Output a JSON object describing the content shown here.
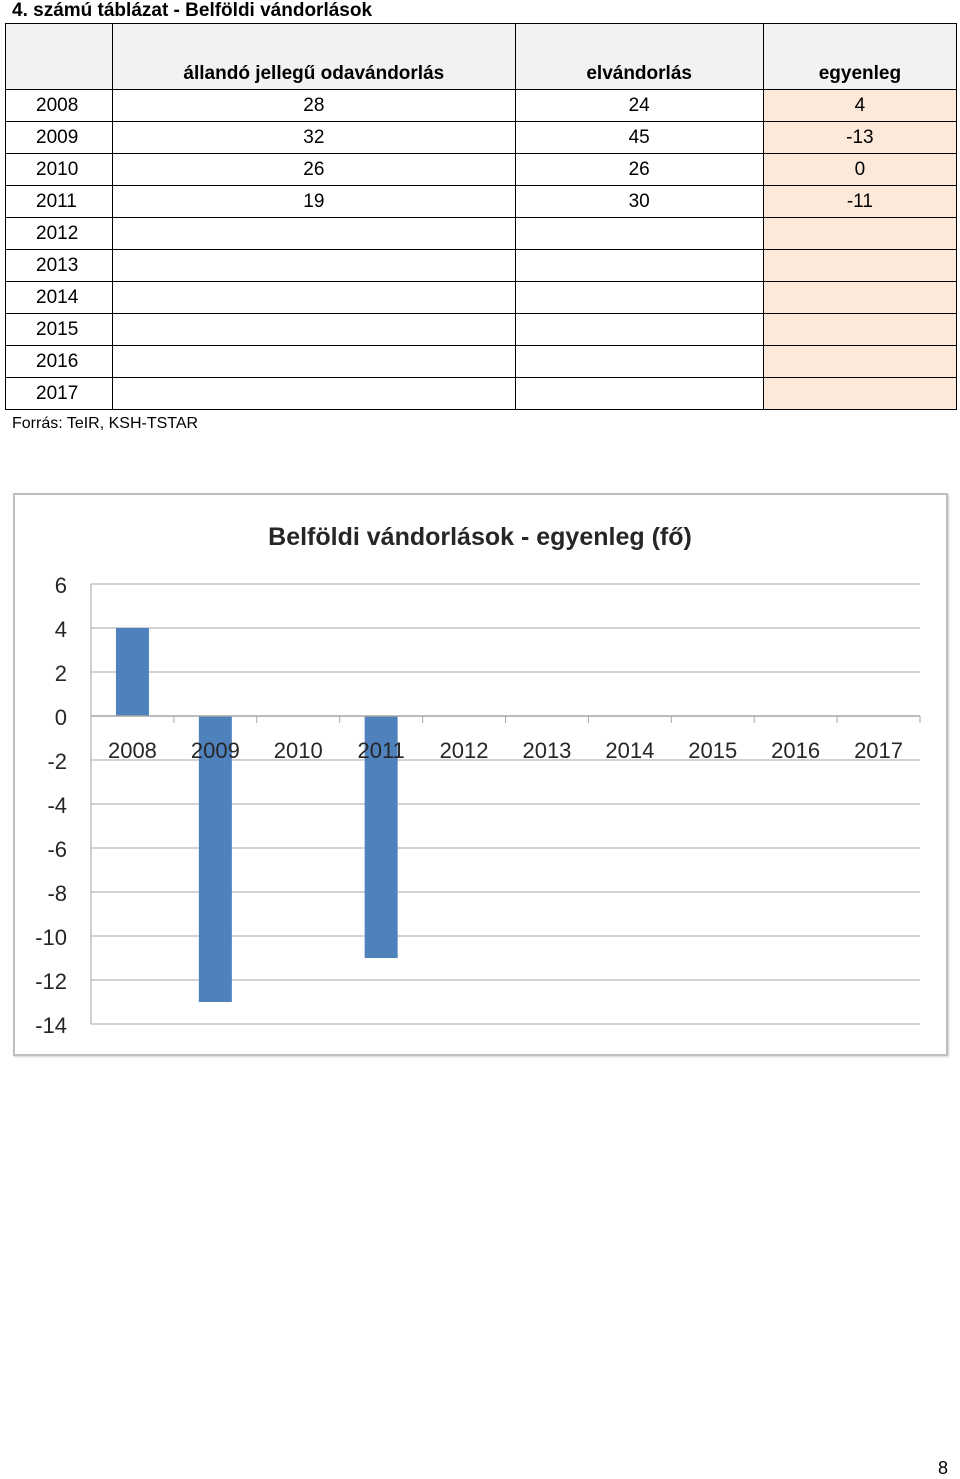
{
  "document": {
    "title": "4. számú táblázat - Belföldi vándorlások",
    "source": "Forrás: TeIR, KSH-TSTAR",
    "page_number": "8"
  },
  "table": {
    "headers": [
      "",
      "állandó jellegű odavándorlás",
      "elvándorlás",
      "egyenleg"
    ],
    "rows": [
      {
        "year": "2008",
        "in": "28",
        "out": "24",
        "balance": "4"
      },
      {
        "year": "2009",
        "in": "32",
        "out": "45",
        "balance": "-13"
      },
      {
        "year": "2010",
        "in": "26",
        "out": "26",
        "balance": "0"
      },
      {
        "year": "2011",
        "in": "19",
        "out": "30",
        "balance": "-11"
      },
      {
        "year": "2012",
        "in": "",
        "out": "",
        "balance": ""
      },
      {
        "year": "2013",
        "in": "",
        "out": "",
        "balance": ""
      },
      {
        "year": "2014",
        "in": "",
        "out": "",
        "balance": ""
      },
      {
        "year": "2015",
        "in": "",
        "out": "",
        "balance": ""
      },
      {
        "year": "2016",
        "in": "",
        "out": "",
        "balance": ""
      },
      {
        "year": "2017",
        "in": "",
        "out": "",
        "balance": ""
      }
    ],
    "balance_fill": "#fde9d9",
    "header_fill": "#f2f2f2"
  },
  "chart_data": {
    "type": "bar",
    "title": "Belföldi vándorlások - egyenleg (fő)",
    "xlabel": "",
    "ylabel": "",
    "categories": [
      "2008",
      "2009",
      "2010",
      "2011",
      "2012",
      "2013",
      "2014",
      "2015",
      "2016",
      "2017"
    ],
    "values": [
      4,
      -13,
      0,
      -11,
      null,
      null,
      null,
      null,
      null,
      null
    ],
    "ylim": [
      -14,
      6
    ],
    "yticks": [
      6,
      4,
      2,
      0,
      -2,
      -4,
      -6,
      -8,
      -10,
      -12,
      -14
    ],
    "grid": true,
    "legend": "none",
    "bar_color": "#4f81bd"
  }
}
